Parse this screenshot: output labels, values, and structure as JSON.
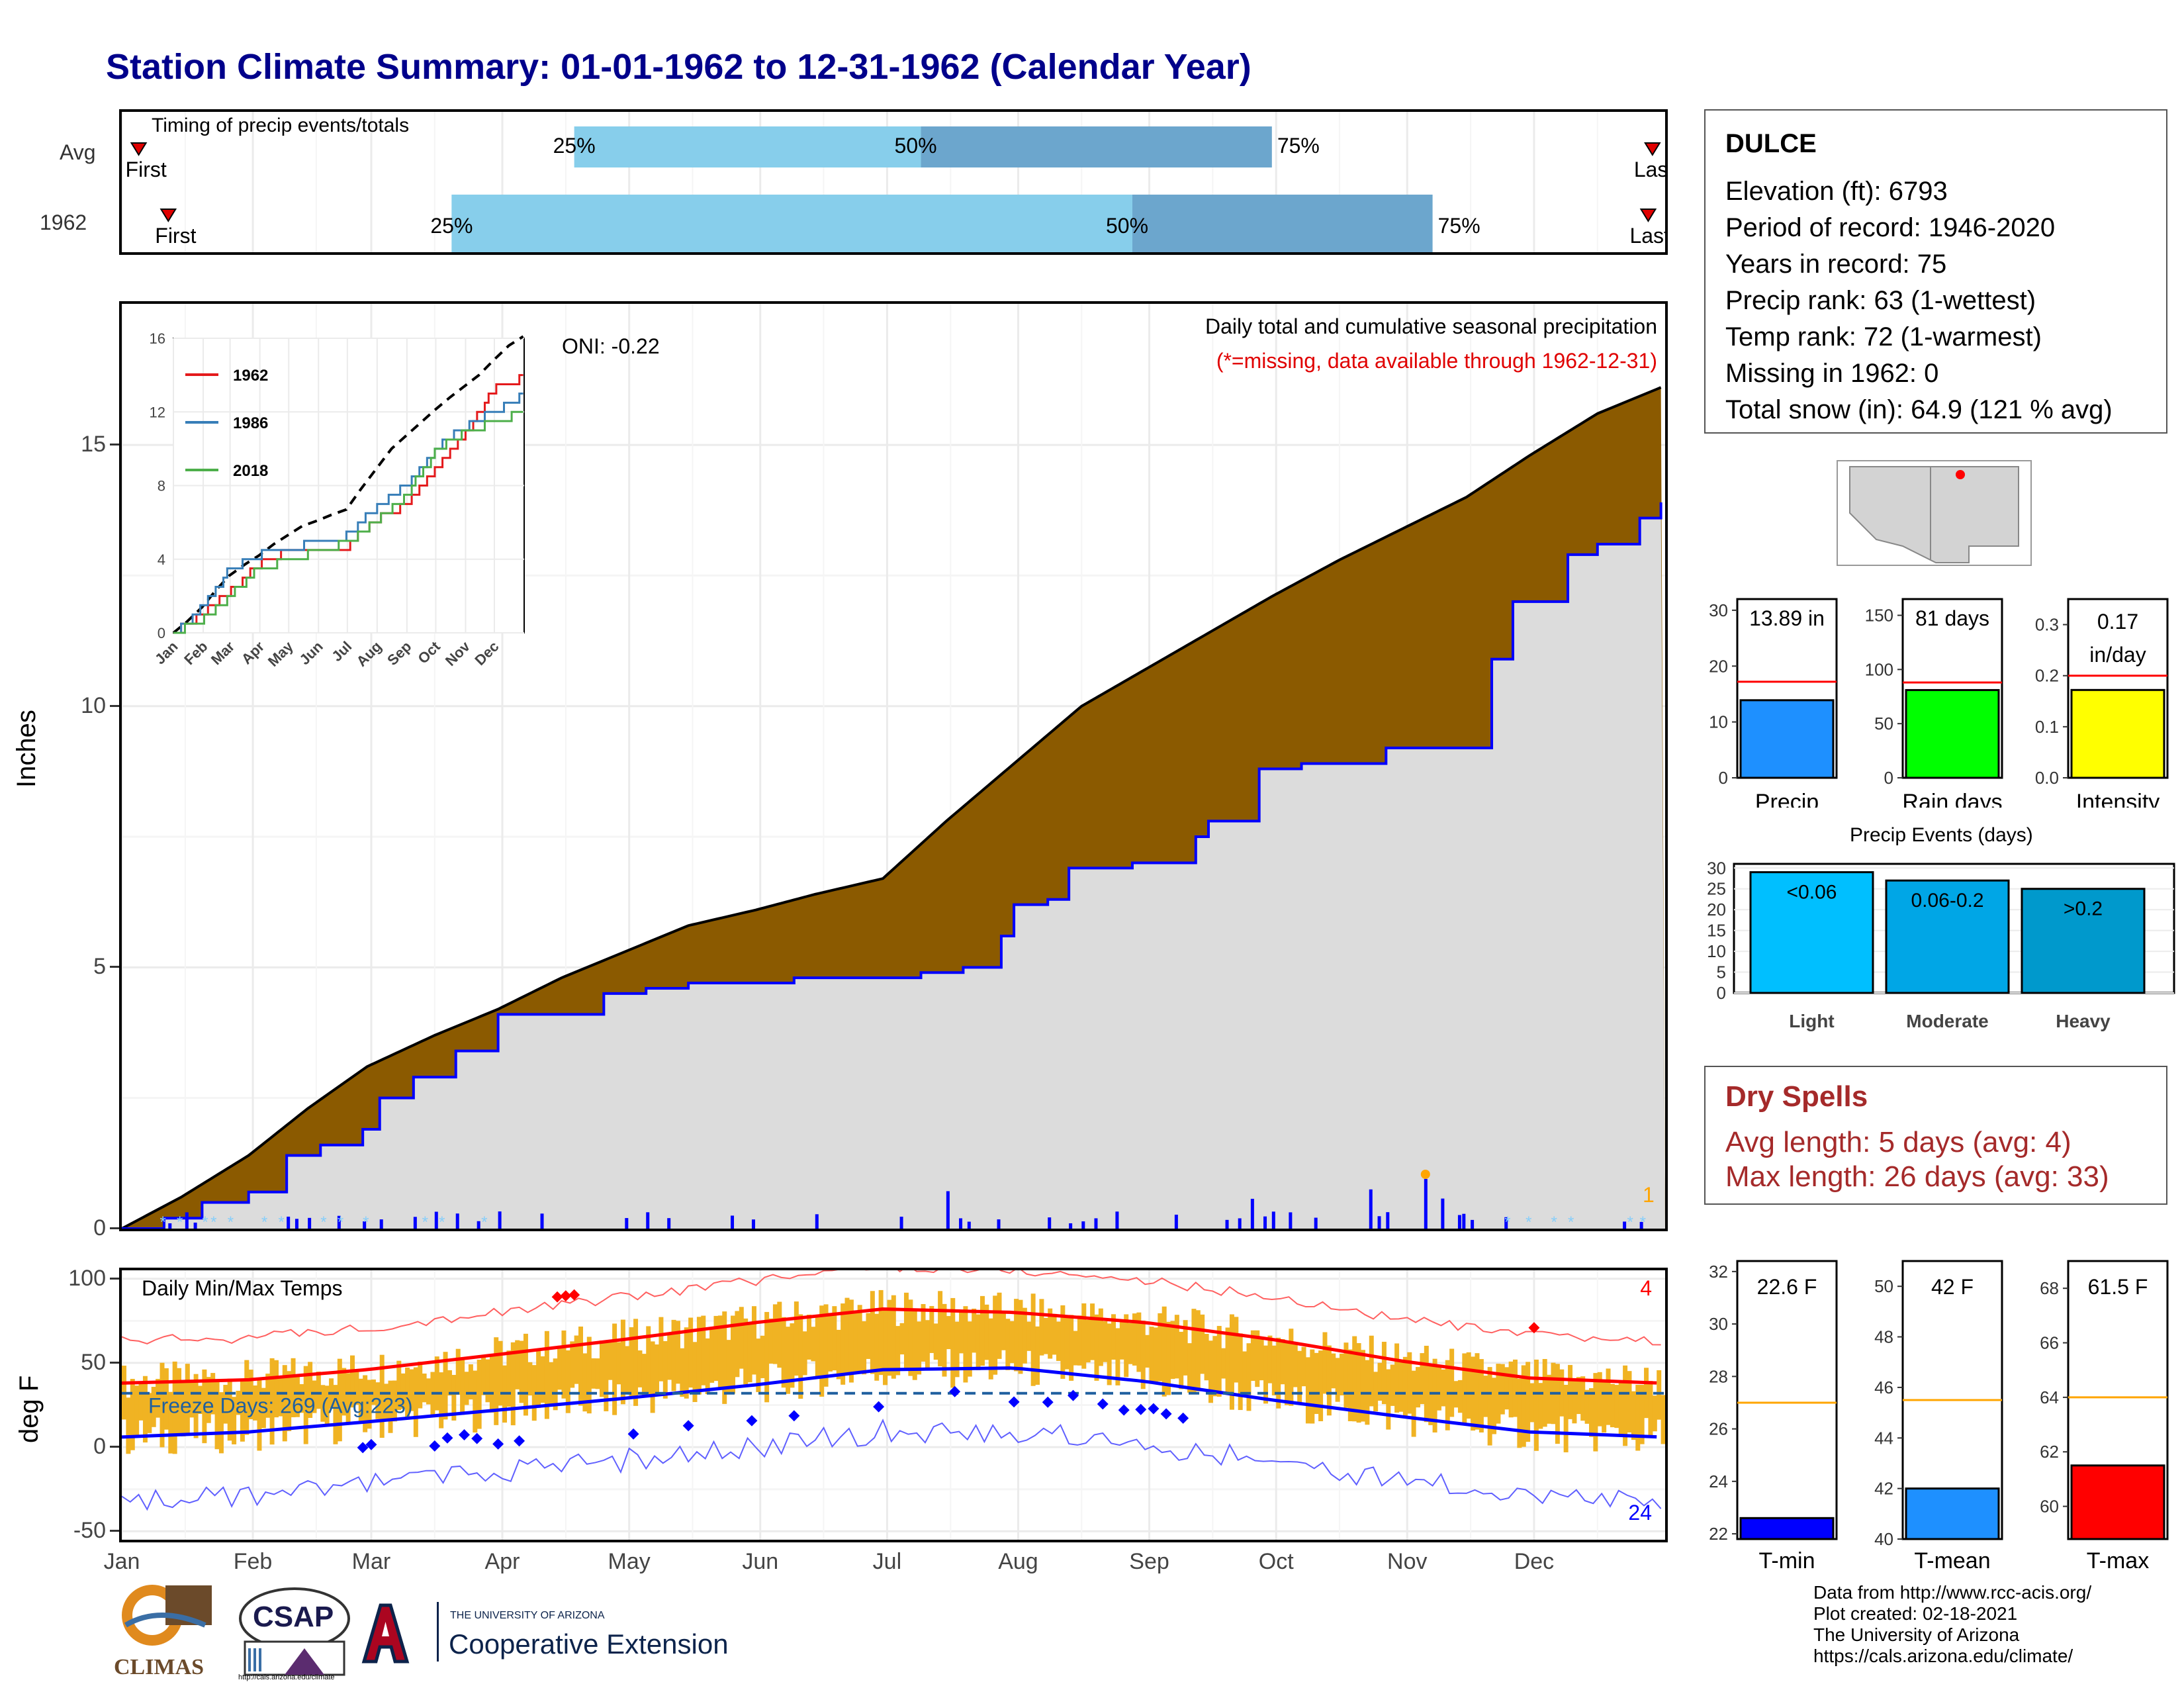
{
  "title": "Station Climate Summary: 01-01-1962 to 12-31-1962 (Calendar Year)",
  "months": [
    "Jan",
    "Feb",
    "Mar",
    "Apr",
    "May",
    "Jun",
    "Jul",
    "Aug",
    "Sep",
    "Oct",
    "Nov",
    "Dec"
  ],
  "timing": {
    "label": "Timing of precip events/totals",
    "rows": [
      {
        "name": "Avg",
        "first_doy": 5,
        "last_doy": 363,
        "p25": 108,
        "p50": 190,
        "p75": 273
      },
      {
        "name": "1962",
        "first_doy": 12,
        "last_doy": 362,
        "p25": 79,
        "p50": 240,
        "p75": 311
      }
    ],
    "first_label": "First",
    "last_label": "Last",
    "pct_labels": [
      "25%",
      "50%",
      "75%"
    ]
  },
  "station": {
    "name": "DULCE",
    "lines": [
      "Elevation (ft): 6793",
      "Period of record: 1946-2020",
      "Years in record: 75",
      "Precip rank: 63 (1-wettest)",
      "Temp rank: 72 (1-warmest)",
      "Missing in 1962: 0",
      "Total snow (in): 64.9 (121 % avg)"
    ]
  },
  "precip_panel": {
    "ylabel": "Inches",
    "yticks": [
      0,
      5,
      10,
      15
    ],
    "title": "Daily total and cumulative seasonal precipitation",
    "subtitle": "(*=missing, data available through 1962-12-31)",
    "oni": "ONI: -0.22",
    "corner_count": "1"
  },
  "inset": {
    "yticks": [
      0,
      4,
      8,
      12,
      16
    ],
    "legend": [
      "1962",
      "1986",
      "2018"
    ],
    "colors": [
      "#e41a1c",
      "#377eb8",
      "#4daf4a"
    ]
  },
  "temp_panel": {
    "ylabel": "deg F",
    "yticks": [
      -50,
      0,
      50,
      100
    ],
    "title": "Daily Min/Max Temps",
    "freeze": "Freeze Days: 269 (Avg:223)",
    "record_high_count": "4",
    "record_low_count": "24"
  },
  "bars_small": [
    {
      "label": "Precip",
      "value_label": "13.89 in",
      "value": 13.89,
      "avg": 17.2,
      "yticks": [
        0,
        10,
        20,
        30
      ],
      "ymax": 32,
      "color": "#1e90ff"
    },
    {
      "label": "Rain days",
      "value_label": "81 days",
      "value": 81,
      "avg": 88,
      "yticks": [
        0,
        50,
        100,
        150
      ],
      "ymax": 165,
      "color": "#00ff00"
    },
    {
      "label": "Intensity",
      "value_label": "0.17 in/day",
      "value": 0.172,
      "avg": 0.2,
      "yticks": [
        "0.0",
        "0.1",
        "0.2",
        "0.3"
      ],
      "ymax": 0.35,
      "color": "#ffff00"
    }
  ],
  "events": {
    "title": "Precip Events (days)",
    "yticks": [
      0,
      5,
      10,
      15,
      20,
      25,
      30
    ],
    "bars": [
      {
        "label": "Light",
        "tag": "<0.06",
        "value": 29,
        "color": "#00bfff"
      },
      {
        "label": "Moderate",
        "tag": "0.06-0.2",
        "value": 27,
        "color": "#00a6e6"
      },
      {
        "label": "Heavy",
        "tag": ">0.2",
        "value": 25,
        "color": "#0099cc"
      }
    ]
  },
  "dry_spells": {
    "title": "Dry Spells",
    "avg_line": "Avg length: 5 days (avg: 4)",
    "max_line": "Max length: 26 days (avg: 33)"
  },
  "temp_bars": [
    {
      "label": "T-min",
      "value_label": "22.6 F",
      "value": 22.6,
      "avg": 27.0,
      "ymin": 21.8,
      "ymax": 32.4,
      "yticks": [
        22,
        24,
        26,
        28,
        30,
        32
      ],
      "color": "#0000ff"
    },
    {
      "label": "T-mean",
      "value_label": "42 F",
      "value": 42.0,
      "avg": 45.5,
      "ymin": 40,
      "ymax": 51,
      "yticks": [
        40,
        42,
        44,
        46,
        48,
        50
      ],
      "color": "#1e90ff"
    },
    {
      "label": "T-max",
      "value_label": "61.5 F",
      "value": 61.5,
      "avg": 64.0,
      "ymin": 58.8,
      "ymax": 69,
      "yticks": [
        60,
        62,
        64,
        66,
        68
      ],
      "color": "#ff0000"
    }
  ],
  "footer": [
    "Data from http://www.rcc-acis.org/",
    "Plot created: 02-18-2021",
    "The University of Arizona",
    "https://cals.arizona.edu/climate/"
  ],
  "logos": {
    "climas": "CLIMAS",
    "csap": "CSAP",
    "csap_url": "http://cals.arizona.edu/climate",
    "ua_small": "THE UNIVERSITY OF ARIZONA",
    "ua_big": "Cooperative Extension"
  },
  "chart_data": [
    {
      "type": "area",
      "name": "Daily total and cumulative seasonal precipitation",
      "x_unit": "day of year",
      "ylim": [
        0,
        17.5
      ],
      "series": [
        {
          "name": "Average cumulative",
          "x": [
            1,
            15,
            31,
            45,
            59,
            75,
            90,
            105,
            120,
            135,
            151,
            165,
            181,
            196,
            212,
            228,
            243,
            258,
            273,
            289,
            304,
            319,
            334,
            350,
            365
          ],
          "values": [
            0,
            0.6,
            1.4,
            2.3,
            3.1,
            3.7,
            4.2,
            4.8,
            5.3,
            5.8,
            6.1,
            6.4,
            6.7,
            7.8,
            8.9,
            10.0,
            10.7,
            11.4,
            12.1,
            12.8,
            13.4,
            14.0,
            14.8,
            15.6,
            16.1
          ]
        },
        {
          "name": "1962 cumulative",
          "x": [
            1,
            11,
            20,
            31,
            40,
            48,
            58,
            62,
            70,
            80,
            90,
            100,
            115,
            125,
            135,
            152,
            160,
            170,
            180,
            190,
            200,
            209,
            212,
            220,
            225,
            240,
            255,
            258,
            270,
            280,
            300,
            325,
            330,
            343,
            350,
            360,
            365
          ],
          "values": [
            0,
            0.2,
            0.5,
            0.7,
            1.4,
            1.6,
            1.9,
            2.5,
            2.9,
            3.4,
            4.1,
            4.1,
            4.5,
            4.6,
            4.7,
            4.7,
            4.8,
            4.8,
            4.8,
            4.9,
            5.0,
            5.6,
            6.2,
            6.3,
            6.9,
            7.0,
            7.5,
            7.8,
            8.8,
            8.9,
            9.2,
            10.9,
            12.0,
            12.9,
            13.1,
            13.6,
            13.9
          ]
        }
      ]
    },
    {
      "type": "line",
      "name": "inset cumulative comparison",
      "ylim": [
        0,
        16
      ],
      "series": [
        {
          "name": "1962",
          "x": [
            1,
            31,
            59,
            90,
            120,
            151,
            181,
            212,
            243,
            273,
            304,
            334,
            365
          ],
          "values": [
            0,
            1.0,
            2.2,
            3.8,
            4.4,
            4.6,
            4.7,
            6.2,
            7.0,
            9.0,
            10.7,
            13.3,
            13.9
          ]
        },
        {
          "name": "1986",
          "x": [
            1,
            31,
            59,
            90,
            120,
            151,
            181,
            212,
            243,
            273,
            304,
            334,
            365
          ],
          "values": [
            0,
            1.4,
            3.4,
            4.2,
            4.7,
            4.8,
            5.3,
            6.8,
            8.0,
            10.0,
            11.2,
            12.0,
            13.0
          ]
        },
        {
          "name": "2018",
          "x": [
            1,
            31,
            59,
            90,
            120,
            151,
            181,
            212,
            243,
            273,
            304,
            334,
            365
          ],
          "values": [
            0,
            0.7,
            2.0,
            3.5,
            3.9,
            4.5,
            4.9,
            6.1,
            7.5,
            9.8,
            11.0,
            11.4,
            12.0
          ]
        }
      ]
    },
    {
      "type": "line",
      "name": "Daily Min/Max Temps",
      "ylim": [
        -55,
        105
      ],
      "series": [
        {
          "name": "Normal max",
          "x": [
            1,
            31,
            59,
            90,
            120,
            151,
            181,
            212,
            243,
            273,
            304,
            334,
            365
          ],
          "values": [
            38,
            40,
            46,
            55,
            64,
            74,
            82,
            80,
            74,
            64,
            51,
            41,
            38
          ]
        },
        {
          "name": "Normal min",
          "x": [
            1,
            31,
            59,
            90,
            120,
            151,
            181,
            212,
            243,
            273,
            304,
            334,
            365
          ],
          "values": [
            6,
            9,
            15,
            22,
            29,
            37,
            46,
            47,
            39,
            28,
            18,
            9,
            6
          ]
        },
        {
          "name": "Freeze line",
          "x": [
            1,
            365
          ],
          "values": [
            32,
            32
          ]
        }
      ]
    }
  ]
}
